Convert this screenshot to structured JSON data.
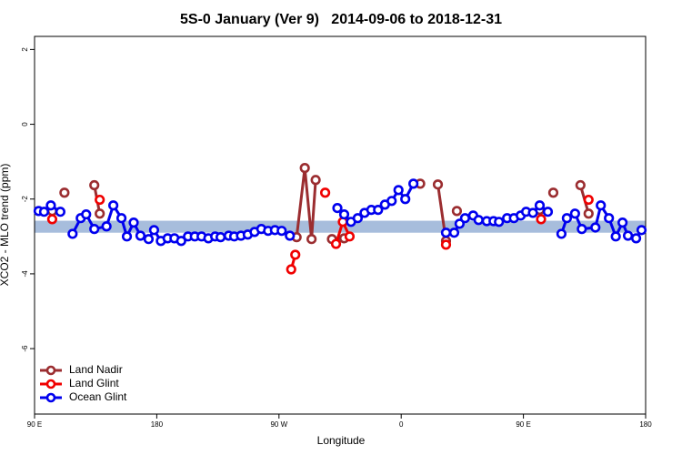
{
  "chart_data": {
    "type": "line",
    "title": "5S-0 January (Ver 9)   2014-09-06 to 2018-12-31",
    "x_label": "Longitude",
    "y_label": "XCO2 - MLO trend (ppm)",
    "xlim": [
      90,
      540
    ],
    "ylim": [
      -7.75,
      2.35
    ],
    "xticks": [
      {
        "value": 90,
        "label": "90 E"
      },
      {
        "value": 180,
        "label": "180"
      },
      {
        "value": 270,
        "label": "90 W"
      },
      {
        "value": 360,
        "label": "0"
      },
      {
        "value": 450,
        "label": "90 E"
      },
      {
        "value": 540,
        "label": "180"
      }
    ],
    "yticks": [
      2,
      0,
      -2,
      -4,
      -6
    ],
    "reference_band": [
      -2.9,
      -2.58
    ],
    "band_color": "#a7bddc",
    "legend": "bottom-left",
    "series": [
      {
        "name": "Land Nadir",
        "color": "#9b2d30",
        "x": [
          103,
          null,
          112,
          null,
          134,
          138,
          null,
          283,
          289,
          294,
          297,
          null,
          309,
          318,
          null,
          374,
          null,
          387,
          393,
          null,
          401,
          null,
          462,
          null,
          472,
          null,
          492,
          498
        ],
        "values": [
          -2.32,
          null,
          -1.83,
          null,
          -1.63,
          -2.39,
          null,
          -3.02,
          -1.17,
          -3.07,
          -1.49,
          null,
          -3.07,
          -3.05,
          null,
          -1.59,
          null,
          -1.61,
          -3.12,
          null,
          -2.32,
          null,
          -2.29,
          null,
          -1.83,
          null,
          -1.63,
          -2.39
        ]
      },
      {
        "name": "Land Glint",
        "color": "#f00000",
        "x": [
          103,
          null,
          138,
          null,
          279,
          282,
          null,
          304,
          null,
          312,
          317,
          322,
          null,
          393,
          null,
          463,
          null,
          498
        ],
        "values": [
          -2.54,
          null,
          -2.02,
          null,
          -3.88,
          -3.49,
          null,
          -1.83,
          null,
          -3.2,
          -2.61,
          -3.0,
          null,
          -3.22,
          null,
          -2.54,
          null,
          -2.02
        ]
      },
      {
        "name": "Ocean Glint",
        "color": "#0000ee",
        "x": [
          93,
          97,
          102,
          109,
          null,
          118,
          124,
          128,
          134,
          143,
          148,
          154,
          158,
          163,
          168,
          174,
          178,
          183,
          188,
          193,
          198,
          203,
          208,
          213,
          218,
          223,
          227,
          233,
          237,
          242,
          247,
          252,
          257,
          262,
          267,
          272,
          278,
          null,
          313,
          318,
          323,
          328,
          333,
          338,
          343,
          348,
          353,
          358,
          363,
          369,
          null,
          393,
          399,
          403,
          407,
          413,
          417,
          423,
          428,
          432,
          438,
          443,
          448,
          452,
          457,
          462,
          468,
          null,
          478,
          482,
          488,
          493,
          503,
          507,
          513,
          518,
          523,
          527,
          533,
          537
        ],
        "values": [
          -2.32,
          -2.34,
          -2.17,
          -2.34,
          null,
          -2.93,
          -2.51,
          -2.41,
          -2.8,
          -2.73,
          -2.17,
          -2.51,
          -3.0,
          -2.63,
          -2.98,
          -3.07,
          -2.83,
          -3.12,
          -3.05,
          -3.05,
          -3.12,
          -3.0,
          -3.0,
          -3.0,
          -3.05,
          -3.0,
          -3.02,
          -2.98,
          -3.0,
          -2.98,
          -2.95,
          -2.88,
          -2.8,
          -2.85,
          -2.83,
          -2.85,
          -2.98,
          null,
          -2.24,
          -2.41,
          -2.61,
          -2.51,
          -2.37,
          -2.29,
          -2.29,
          -2.15,
          -2.05,
          -1.76,
          -2.0,
          -1.59,
          null,
          -2.9,
          -2.9,
          -2.66,
          -2.51,
          -2.44,
          -2.56,
          -2.59,
          -2.59,
          -2.61,
          -2.51,
          -2.51,
          -2.44,
          -2.34,
          -2.37,
          -2.17,
          -2.34,
          null,
          -2.93,
          -2.51,
          -2.39,
          -2.8,
          -2.76,
          -2.17,
          -2.51,
          -3.0,
          -2.63,
          -2.98,
          -3.05,
          -2.83
        ]
      }
    ]
  }
}
